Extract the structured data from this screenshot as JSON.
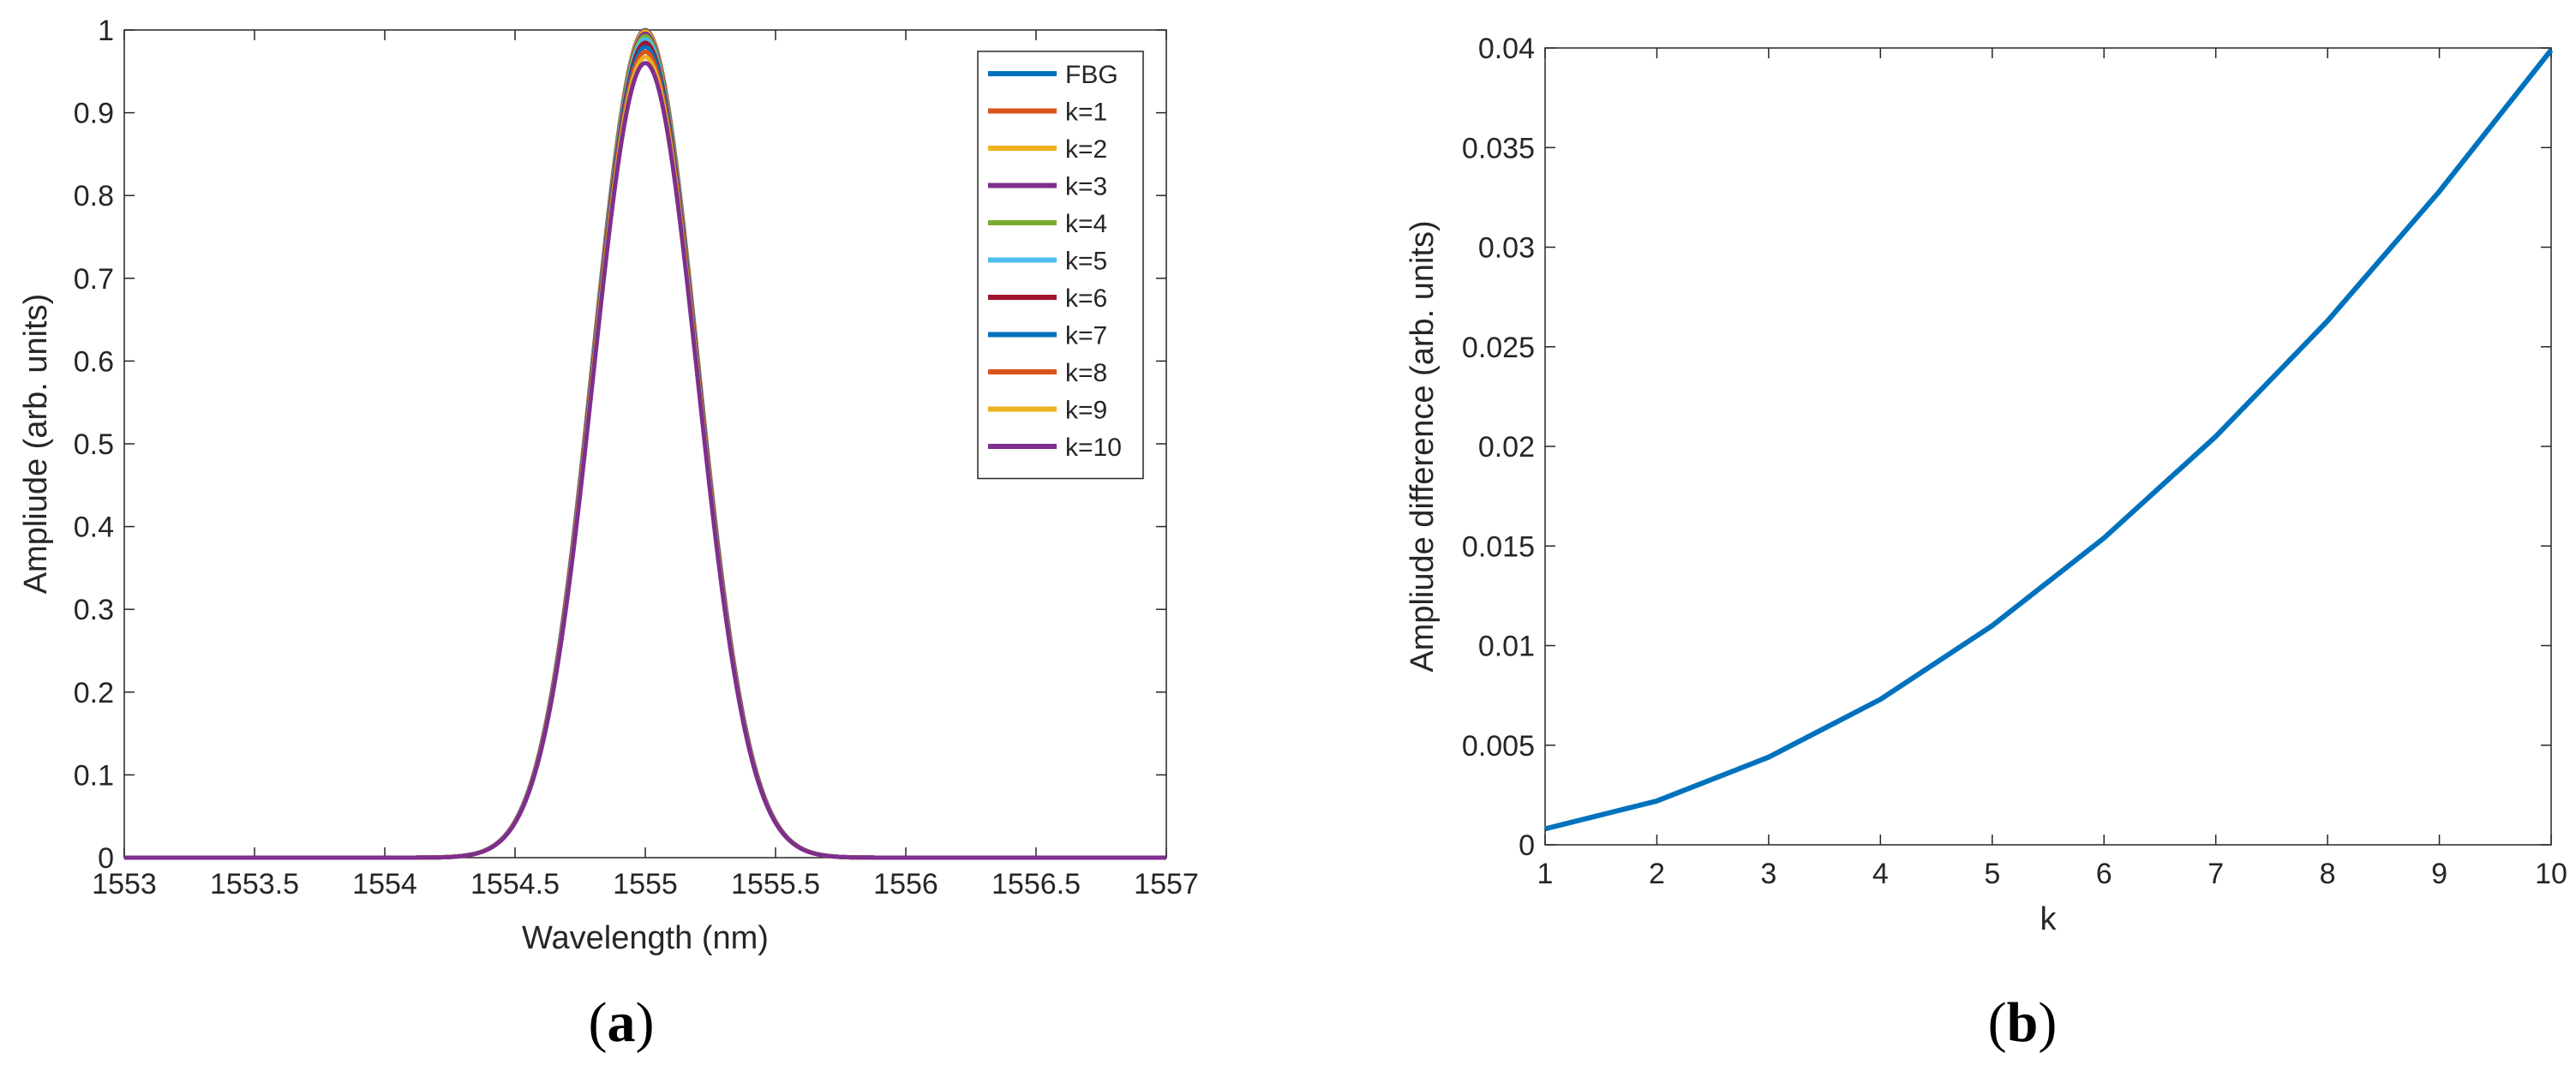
{
  "chart_data": [
    {
      "type": "line",
      "panel_label": "a",
      "caption_open": "(",
      "caption_close": ")",
      "title": "",
      "xlabel": "Wavelength (nm)",
      "ylabel": "Ampliude (arb. units)",
      "xlim": [
        1553,
        1557
      ],
      "ylim": [
        0,
        1
      ],
      "xticks": [
        1553,
        1553.5,
        1554,
        1554.5,
        1555,
        1555.5,
        1556,
        1556.5,
        1557
      ],
      "yticks": [
        0,
        0.1,
        0.2,
        0.3,
        0.4,
        0.5,
        0.6,
        0.7,
        0.8,
        0.9,
        1
      ],
      "legend_position": "top-right",
      "curve_shape": "gaussian",
      "center_nm": 1555,
      "sigma_nm": 0.2,
      "series": [
        {
          "name": "FBG",
          "peak": 1.0,
          "color": "#0072BD"
        },
        {
          "name": "k=1",
          "peak": 0.9992,
          "color": "#D95319"
        },
        {
          "name": "k=2",
          "peak": 0.9978,
          "color": "#EDB120"
        },
        {
          "name": "k=3",
          "peak": 0.9956,
          "color": "#7E2F8E"
        },
        {
          "name": "k=4",
          "peak": 0.9927,
          "color": "#77AC30"
        },
        {
          "name": "k=5",
          "peak": 0.989,
          "color": "#4DBEEE"
        },
        {
          "name": "k=6",
          "peak": 0.9846,
          "color": "#A2142F"
        },
        {
          "name": "k=7",
          "peak": 0.9795,
          "color": "#0072BD"
        },
        {
          "name": "k=8",
          "peak": 0.9737,
          "color": "#D95319"
        },
        {
          "name": "k=9",
          "peak": 0.9672,
          "color": "#EDB120"
        },
        {
          "name": "k=10",
          "peak": 0.9601,
          "color": "#7E2F8E"
        }
      ]
    },
    {
      "type": "line",
      "panel_label": "b",
      "caption_open": "(",
      "caption_close": ")",
      "title": "",
      "xlabel": "k",
      "ylabel": "Ampliude difference (arb. units)",
      "xlim": [
        1,
        10
      ],
      "ylim": [
        0,
        0.04
      ],
      "xticks": [
        1,
        2,
        3,
        4,
        5,
        6,
        7,
        8,
        9,
        10
      ],
      "yticks": [
        0,
        0.005,
        0.01,
        0.015,
        0.02,
        0.025,
        0.03,
        0.035,
        0.04
      ],
      "ytick_labels": [
        "0",
        "0.005",
        "0.01",
        "0.015",
        "0.02",
        "0.025",
        "0.03",
        "0.035",
        "0.04"
      ],
      "series": [
        {
          "name": "Amplitude difference",
          "color": "#0072BD",
          "x": [
            1,
            2,
            3,
            4,
            5,
            6,
            7,
            8,
            9,
            10
          ],
          "y": [
            0.0008,
            0.0022,
            0.0044,
            0.0073,
            0.011,
            0.0154,
            0.0205,
            0.0263,
            0.0328,
            0.0399
          ]
        }
      ]
    }
  ]
}
